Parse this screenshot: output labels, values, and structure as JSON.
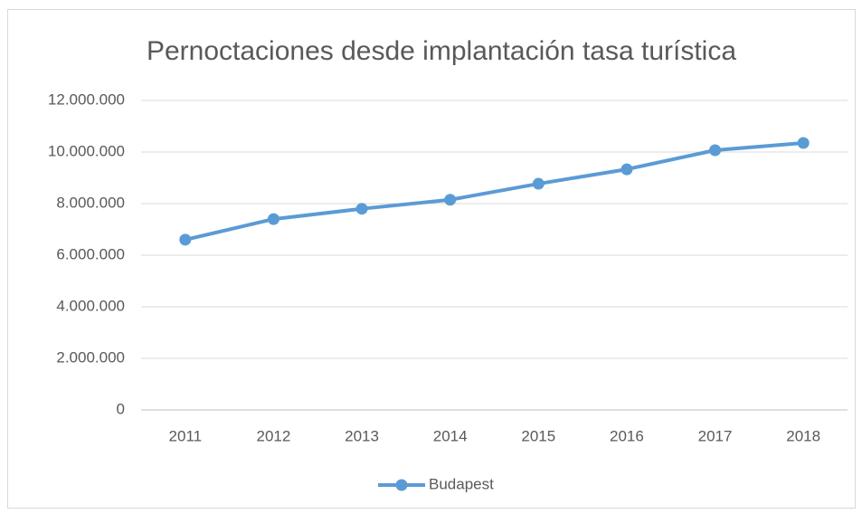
{
  "chart_data": {
    "type": "line",
    "title": "Pernoctaciones desde implantación tasa turística",
    "categories": [
      "2011",
      "2012",
      "2013",
      "2014",
      "2015",
      "2016",
      "2017",
      "2018"
    ],
    "series": [
      {
        "name": "Budapest",
        "color": "#5b9bd5",
        "values": [
          6600000,
          7400000,
          7800000,
          8150000,
          8770000,
          9330000,
          10070000,
          10350000
        ]
      }
    ],
    "ylim": [
      0,
      12000000
    ],
    "yticks": [
      0,
      {
        "value": 2000000,
        "label": "2.000.000"
      },
      {
        "value": 4000000,
        "label": "4.000.000"
      },
      {
        "value": 6000000,
        "label": "6.000.000"
      },
      {
        "value": 8000000,
        "label": "8.000.000"
      },
      {
        "value": 10000000,
        "label": "10.000.000"
      },
      {
        "value": 12000000,
        "label": "12.000.000"
      }
    ],
    "grid": true,
    "legend": "bottom"
  }
}
